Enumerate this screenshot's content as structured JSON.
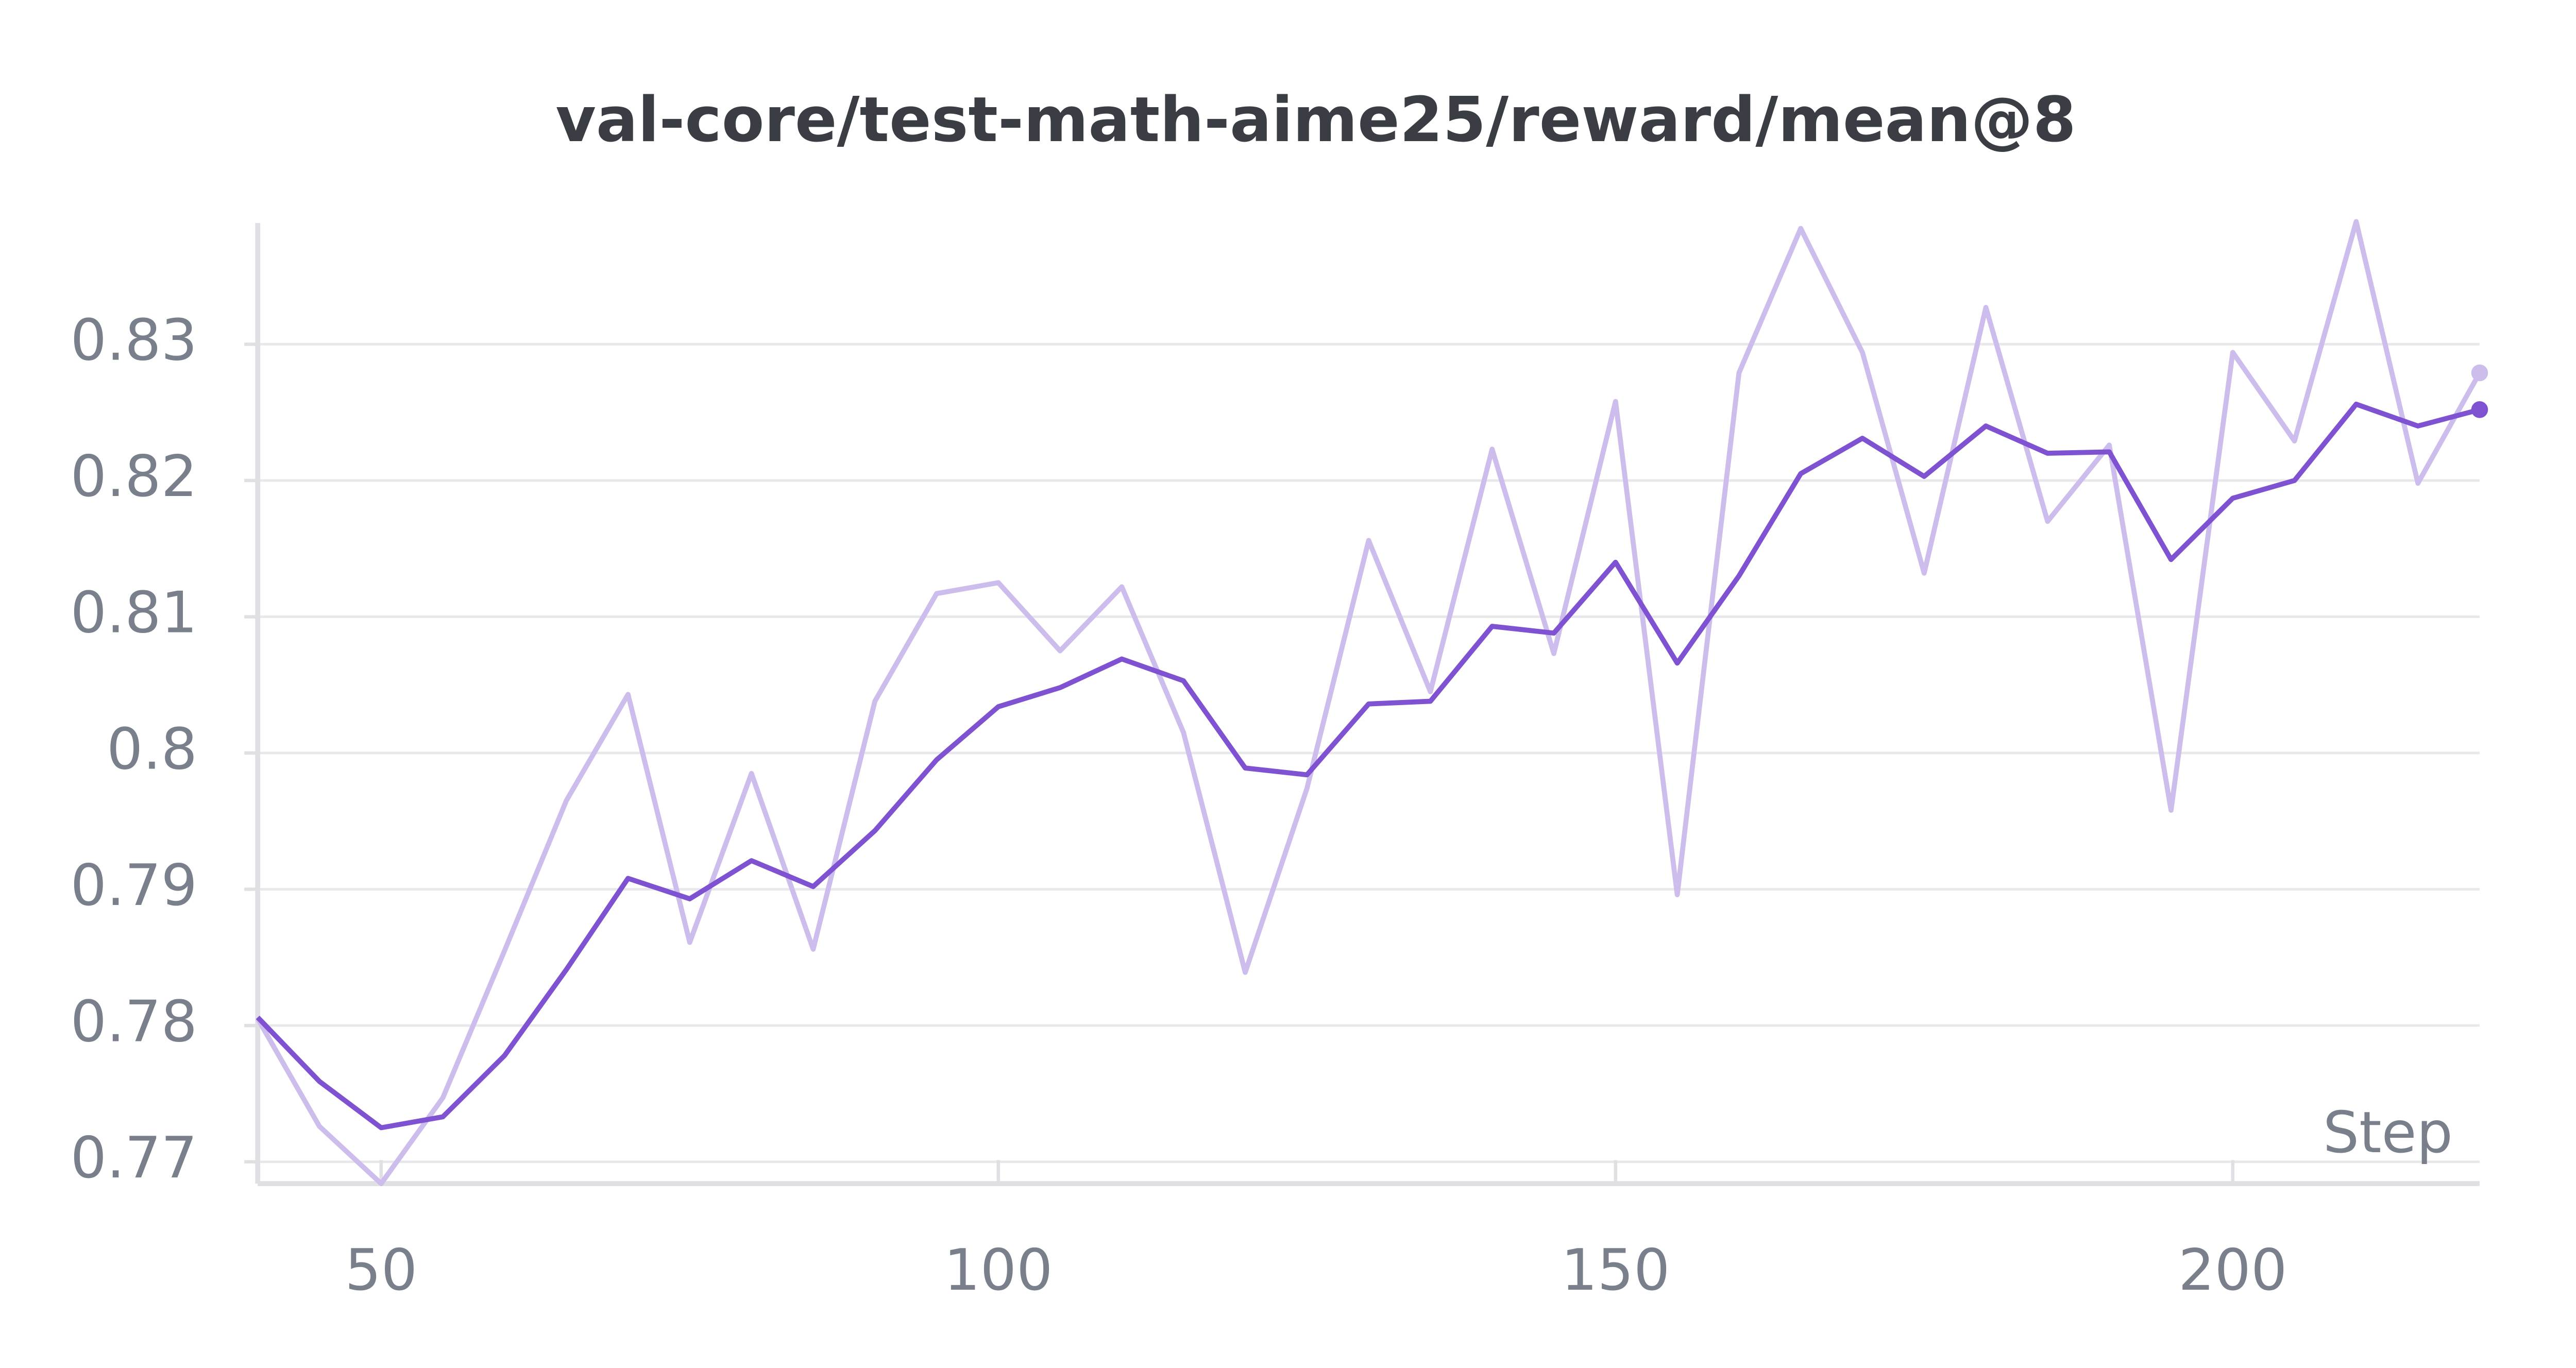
{
  "chart_data": {
    "type": "line",
    "title": "val-core/test-math-aime25/reward/mean@8",
    "xlabel": "Step",
    "x": [
      40,
      45,
      50,
      55,
      60,
      65,
      70,
      75,
      80,
      85,
      90,
      95,
      100,
      105,
      110,
      115,
      120,
      125,
      130,
      135,
      140,
      145,
      150,
      155,
      160,
      165,
      170,
      175,
      180,
      185,
      190,
      195,
      200,
      205,
      210,
      215,
      220
    ],
    "series": [
      {
        "color": "#cdbdec",
        "values": [
          0.7805,
          0.7726,
          0.7684,
          0.7747,
          0.7855,
          0.7965,
          0.8043,
          0.7861,
          0.7985,
          0.7856,
          0.8038,
          0.8117,
          0.8125,
          0.8075,
          0.8122,
          0.8015,
          0.7839,
          0.7974,
          0.8156,
          0.8045,
          0.8223,
          0.8073,
          0.8258,
          0.7896,
          0.8279,
          0.8385,
          0.8294,
          0.8132,
          0.8327,
          0.817,
          0.8226,
          0.7958,
          0.8294,
          0.8229,
          0.839,
          0.8198,
          0.8279
        ]
      },
      {
        "color": "#7e52d0",
        "values": [
          0.7806,
          0.7759,
          0.7725,
          0.7733,
          0.7778,
          0.7841,
          0.7908,
          0.7893,
          0.7921,
          0.7902,
          0.7943,
          0.7995,
          0.8034,
          0.8048,
          0.8069,
          0.8053,
          0.7989,
          0.7984,
          0.8036,
          0.8038,
          0.8093,
          0.8088,
          0.814,
          0.8066,
          0.813,
          0.8205,
          0.8231,
          0.8203,
          0.824,
          0.822,
          0.8221,
          0.8142,
          0.8187,
          0.82,
          0.8256,
          0.824,
          0.8252
        ]
      }
    ],
    "xlim": [
      40,
      220
    ],
    "xticks": [
      50,
      100,
      150,
      200
    ],
    "ylim": [
      0.7684,
      0.8389
    ],
    "yticks": [
      0.77,
      0.78,
      0.79,
      0.8,
      0.81,
      0.82,
      0.83
    ],
    "grid": true
  }
}
